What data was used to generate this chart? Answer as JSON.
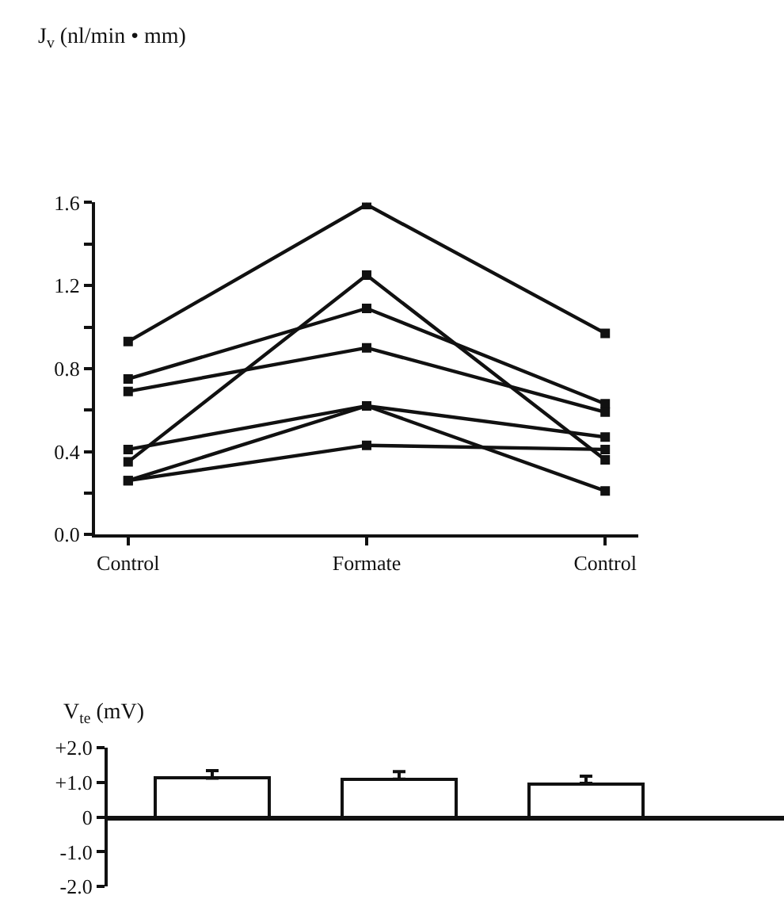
{
  "chart_data": [
    {
      "type": "line",
      "ylabel": "J$_{v}$ (nl/min • mm)",
      "categories": [
        "Control",
        "Formate",
        "Control"
      ],
      "series": [
        {
          "color": "#111111",
          "values": [
            0.93,
            1.59,
            0.97
          ]
        },
        {
          "color": "#111111",
          "values": [
            0.75,
            1.09,
            0.63
          ]
        },
        {
          "color": "#111111",
          "values": [
            0.69,
            0.9,
            0.59
          ]
        },
        {
          "color": "#111111",
          "values": [
            0.35,
            1.25,
            0.36
          ]
        },
        {
          "color": "#111111",
          "values": [
            0.41,
            0.62,
            0.47
          ]
        },
        {
          "color": "#111111",
          "values": [
            0.26,
            0.62,
            0.21
          ]
        },
        {
          "color": "#111111",
          "values": [
            0.26,
            0.43,
            0.41
          ]
        }
      ],
      "ylim": [
        0,
        1.6
      ],
      "yticks": [
        {
          "value": 0,
          "label": "0.0"
        },
        {
          "value": 0.2,
          "label": null
        },
        {
          "value": 0.4,
          "label": "0.4"
        },
        {
          "value": 0.6,
          "label": null
        },
        {
          "value": 0.8,
          "label": "0.8"
        },
        {
          "value": 1.0,
          "label": null
        },
        {
          "value": 1.2,
          "label": "1.2"
        },
        {
          "value": 1.4,
          "label": null
        },
        {
          "value": 1.6,
          "label": "1.6"
        }
      ],
      "marker": "square",
      "line_style": "solid"
    },
    {
      "type": "bar",
      "ylabel": "V$_{te}$ (mV)",
      "categories": [
        null,
        null,
        null
      ],
      "values": [
        1.12,
        1.09,
        0.97
      ],
      "color": "#ffffff",
      "errors": [
        [
          1.12,
          1.34
        ],
        [
          1.09,
          1.31
        ],
        [
          0.97,
          1.18
        ]
      ],
      "ylim": [
        -2,
        2
      ],
      "yticks": [
        {
          "value": -2,
          "label": "-2.0"
        },
        {
          "value": -1,
          "label": "-1.0"
        },
        {
          "value": 0,
          "label": "0"
        },
        {
          "value": 1,
          "label": "+1.0"
        },
        {
          "value": 2,
          "label": "+2.0"
        }
      ]
    }
  ]
}
